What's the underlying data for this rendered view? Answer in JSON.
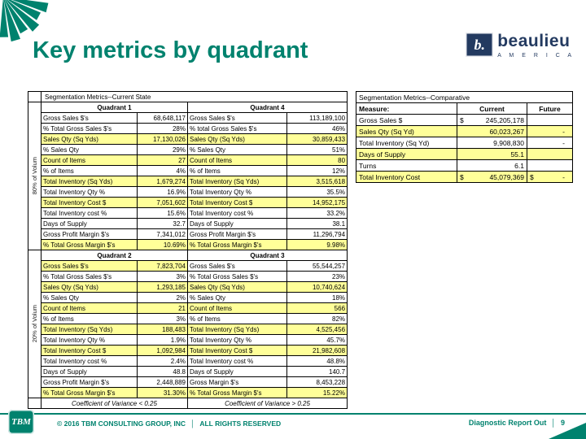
{
  "slide": {
    "title": "Key metrics by quadrant",
    "footer": {
      "copyright": "© 2016 TBM CONSULTING GROUP, INC",
      "separator": "│",
      "rights": "ALL RIGHTS RESERVED",
      "report_name": "Diagnostic Report Out",
      "page_number": "9"
    }
  },
  "brand": {
    "beaulieu_mark": "b.",
    "beaulieu_name": "beaulieu",
    "beaulieu_sub": "A M E R I C A",
    "tbm": "TBM"
  },
  "colors": {
    "teal": "#00826E",
    "navy": "#233A60",
    "highlight": "#FFFF99"
  },
  "current_state": {
    "title": "Segmentation Metrics--Current State",
    "volume_label_top": "80% of Volum",
    "volume_label_bottom": "20% of Volum",
    "coefficient_left": "Coefficient of Variance < 0.25",
    "coefficient_right": "Coefficient of Variance > 0.25",
    "quadrants": [
      {
        "name": "Quadrant 1",
        "rows": [
          {
            "label": "Gross Sales $'s",
            "value": "68,648,117",
            "highlight": false
          },
          {
            "label": "% Total Gross Sales $'s",
            "value": "28%",
            "highlight": false
          },
          {
            "label": "Sales Qty (Sq Yds)",
            "value": "17,130,026",
            "highlight": true
          },
          {
            "label": "% Sales Qty",
            "value": "29%",
            "highlight": false
          },
          {
            "label": "Count of Items",
            "value": "27",
            "highlight": true
          },
          {
            "label": "% of Items",
            "value": "4%",
            "highlight": false
          },
          {
            "label": "Total Inventory (Sq Yds)",
            "value": "1,679,274",
            "highlight": true
          },
          {
            "label": "Total Inventory Qty %",
            "value": "16.9%",
            "highlight": false
          },
          {
            "label": "Total Inventory Cost $",
            "value": "7,051,602",
            "highlight": true
          },
          {
            "label": "Total Inventory cost %",
            "value": "15.6%",
            "highlight": false
          },
          {
            "label": "Days of Supply",
            "value": "32.7",
            "highlight": false
          },
          {
            "label": "Gross Profit Margin $'s",
            "value": "7,341,012",
            "highlight": false
          },
          {
            "label": "% Total Gross Margin $'s",
            "value": "10.69%",
            "highlight": true
          }
        ]
      },
      {
        "name": "Quadrant 4",
        "rows": [
          {
            "label": "Gross Sales $'s",
            "value": "113,189,100",
            "highlight": false
          },
          {
            "label": "% total Gross Sales $'s",
            "value": "46%",
            "highlight": false
          },
          {
            "label": "Sales Qty (Sq Yds)",
            "value": "30,859,433",
            "highlight": true
          },
          {
            "label": "% Sales Qty",
            "value": "51%",
            "highlight": false
          },
          {
            "label": "Count of Items",
            "value": "80",
            "highlight": true
          },
          {
            "label": "% of Items",
            "value": "12%",
            "highlight": false
          },
          {
            "label": "Total Inventory (Sq Yds)",
            "value": "3,515,618",
            "highlight": true
          },
          {
            "label": "Total Inventory Qty %",
            "value": "35.5%",
            "highlight": false
          },
          {
            "label": "Total Inventory Cost $",
            "value": "14,952,175",
            "highlight": true
          },
          {
            "label": "Total Inventory cost %",
            "value": "33.2%",
            "highlight": false
          },
          {
            "label": "Days of Supply",
            "value": "38.1",
            "highlight": false
          },
          {
            "label": "Gross Profit Margin $'s",
            "value": "11,296,794",
            "highlight": false
          },
          {
            "label": "% Total Gross Margin $'s",
            "value": "9.98%",
            "highlight": true
          }
        ]
      },
      {
        "name": "Quadrant 2",
        "rows": [
          {
            "label": "Gross Sales $'s",
            "value": "7,823,704",
            "highlight": true
          },
          {
            "label": "% Total Gross Sales $'s",
            "value": "3%",
            "highlight": false
          },
          {
            "label": "Sales Qty (Sq Yds)",
            "value": "1,293,185",
            "highlight": true
          },
          {
            "label": "% Sales Qty",
            "value": "2%",
            "highlight": false
          },
          {
            "label": "Count of Items",
            "value": "21",
            "highlight": true
          },
          {
            "label": "% of Items",
            "value": "3%",
            "highlight": false
          },
          {
            "label": "Total Inventory (Sq Yds)",
            "value": "188,483",
            "highlight": true
          },
          {
            "label": "Total Inventory Qty %",
            "value": "1.9%",
            "highlight": false
          },
          {
            "label": "Total Inventory Cost $",
            "value": "1,092,984",
            "highlight": true
          },
          {
            "label": "Total Inventory cost %",
            "value": "2.4%",
            "highlight": false
          },
          {
            "label": "Days of Supply",
            "value": "48.8",
            "highlight": false
          },
          {
            "label": "Gross Profit Margin $'s",
            "value": "2,448,889",
            "highlight": false
          },
          {
            "label": "% Total Gross Margin $'s",
            "value": "31.30%",
            "highlight": true
          }
        ]
      },
      {
        "name": "Quadrant 3",
        "rows": [
          {
            "label": "Gross Sales $'s",
            "value": "55,544,257",
            "highlight": false
          },
          {
            "label": "% Total Gross Sales $'s",
            "value": "23%",
            "highlight": false
          },
          {
            "label": "Sales Qty (Sq Yds)",
            "value": "10,740,624",
            "highlight": true
          },
          {
            "label": "% Sales Qty",
            "value": "18%",
            "highlight": false
          },
          {
            "label": "Count of Items",
            "value": "566",
            "highlight": true
          },
          {
            "label": "% of Items",
            "value": "82%",
            "highlight": false
          },
          {
            "label": "Total Inventory (Sq Yds)",
            "value": "4,525,456",
            "highlight": true
          },
          {
            "label": "Total Inventory Qty %",
            "value": "45.7%",
            "highlight": false
          },
          {
            "label": "Total Inventory Cost $",
            "value": "21,982,608",
            "highlight": true
          },
          {
            "label": "Total Inventory cost %",
            "value": "48.8%",
            "highlight": false
          },
          {
            "label": "Days of Supply",
            "value": "140.7",
            "highlight": false
          },
          {
            "label": "Gross Margin $'s",
            "value": "8,453,228",
            "highlight": false
          },
          {
            "label": "% Total Gross Margin $'s",
            "value": "15.22%",
            "highlight": true
          }
        ]
      }
    ]
  },
  "comparative": {
    "title": "Segmentation Metrics--Comparative",
    "headers": [
      "Measure:",
      "Current",
      "Future"
    ],
    "rows": [
      {
        "measure": "Gross Sales $",
        "currency": "$",
        "current": "245,205,178",
        "future_currency": "",
        "future": "",
        "highlight": false
      },
      {
        "measure": "Sales Qty (Sq Yd)",
        "currency": "",
        "current": "60,023,267",
        "future_currency": "",
        "future": "-",
        "highlight": true
      },
      {
        "measure": "Total Inventory (Sq Yd)",
        "currency": "",
        "current": "9,908,830",
        "future_currency": "",
        "future": "-",
        "highlight": false
      },
      {
        "measure": "Days of Supply",
        "currency": "",
        "current": "55.1",
        "future_currency": "",
        "future": "",
        "highlight": true
      },
      {
        "measure": "Turns",
        "currency": "",
        "current": "6.1",
        "future_currency": "",
        "future": "",
        "highlight": false
      },
      {
        "measure": "Total Inventory Cost",
        "currency": "$",
        "current": "45,079,369",
        "future_currency": "$",
        "future": "-",
        "highlight": true
      }
    ]
  }
}
